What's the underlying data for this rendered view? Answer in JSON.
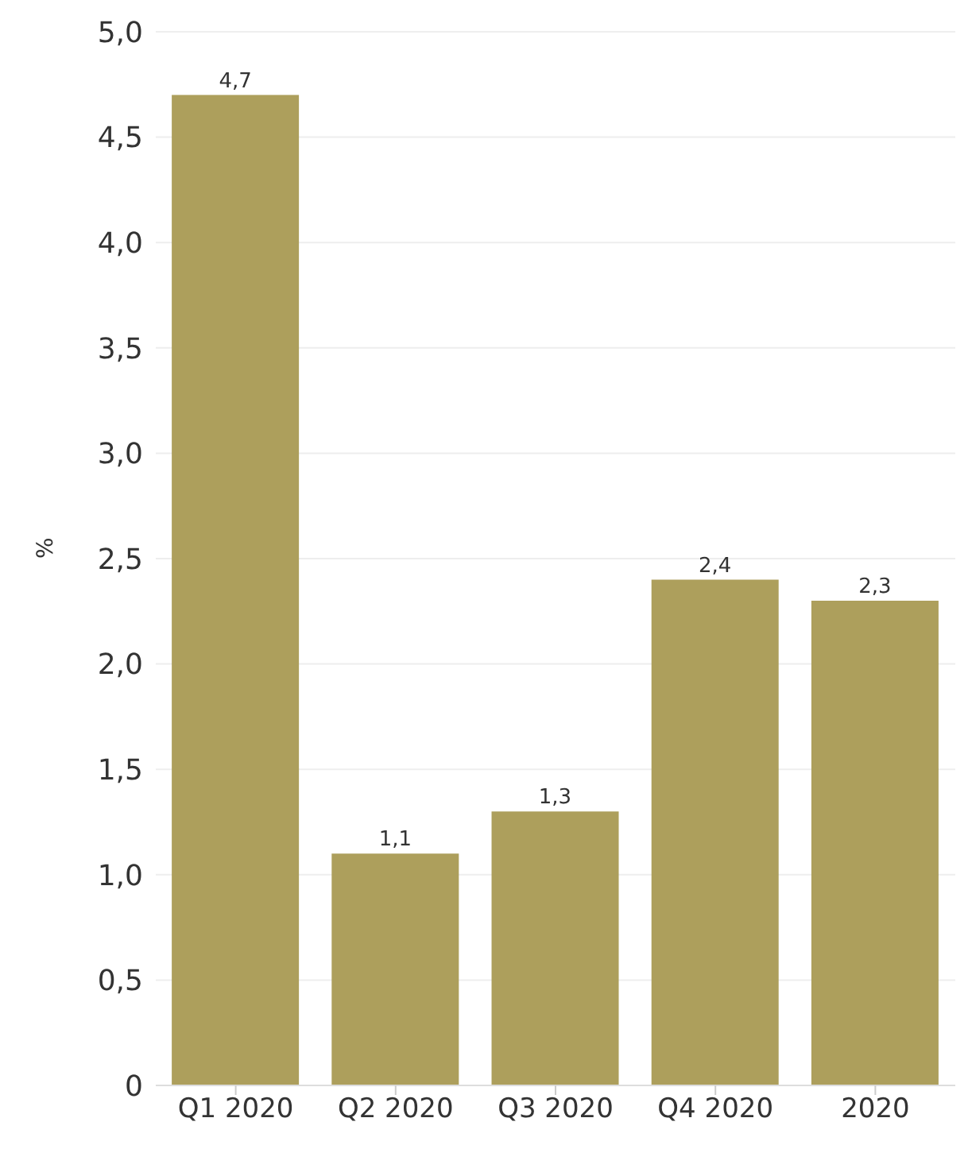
{
  "chart_data": {
    "type": "bar",
    "ylabel": "%",
    "categories": [
      "Q1 2020",
      "Q2 2020",
      "Q3 2020",
      "Q4 2020",
      "2020"
    ],
    "values": [
      4.7,
      1.1,
      1.3,
      2.4,
      2.3
    ],
    "value_labels": [
      "4,7",
      "1,1",
      "1,3",
      "2,4",
      "2,3"
    ],
    "color": "#ad9f5c",
    "ylim": [
      0,
      5
    ],
    "yticks": [
      0,
      {
        "value": 0.5,
        "label": "0,5"
      },
      {
        "value": 1,
        "label": "1,0"
      },
      {
        "value": 1.5,
        "label": "1,5"
      },
      {
        "value": 2,
        "label": "2,0"
      },
      {
        "value": 2.5,
        "label": "2,5"
      },
      {
        "value": 3,
        "label": "3,0"
      },
      {
        "value": 3.5,
        "label": "3,5"
      },
      {
        "value": 4,
        "label": "4,0"
      },
      {
        "value": 4.5,
        "label": "4,5"
      },
      {
        "value": 5,
        "label": "5,0"
      }
    ],
    "grid": "y"
  }
}
